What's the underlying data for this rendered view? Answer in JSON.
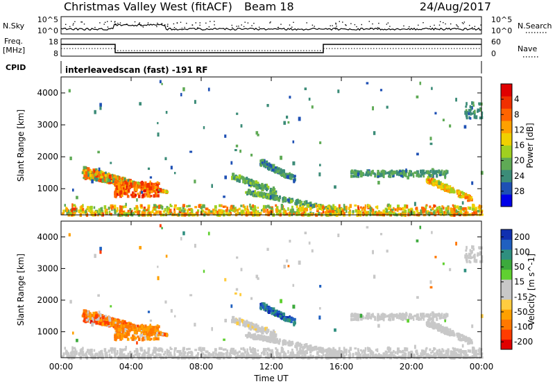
{
  "header": {
    "station": "Christmas Valley West (fitACF)",
    "beam": "Beam 18",
    "date": "24/Aug/2017"
  },
  "top_panels": {
    "nsky_label": "N.Sky",
    "nsky_ticks": [
      "10^5",
      "10^0"
    ],
    "nsearch_label": "N.Search",
    "nsearch_ticks": [
      "10^5",
      "10^0"
    ],
    "freq_label_1": "Freq.",
    "freq_label_2": "[MHz]",
    "freq_ticks": [
      "18",
      "8"
    ],
    "nave_label": "Nave",
    "nave_ticks": [
      "60",
      "0"
    ],
    "cpid_label": "CPID",
    "cpid_text": "interleavedscan (fast) -191 RF"
  },
  "chart_data": [
    {
      "type": "heatmap",
      "title": "",
      "ylabel": "Slant Range [km]",
      "xlabel": "",
      "xlim": [
        0,
        24
      ],
      "ylim": [
        180,
        4500
      ],
      "y_ticks": [
        "1000",
        "2000",
        "3000",
        "4000"
      ],
      "colorbar": {
        "label": "Power [dB]",
        "ticks": [
          "4",
          "8",
          "12",
          "16",
          "20",
          "24",
          "28"
        ],
        "range": [
          0,
          32
        ],
        "colors": [
          "#0000e8",
          "#1e50b4",
          "#3c8c78",
          "#5faa55",
          "#a0d020",
          "#f0d000",
          "#ffa000",
          "#ff6400",
          "#f03000",
          "#e00000"
        ]
      }
    },
    {
      "type": "heatmap",
      "title": "",
      "ylabel": "Slant Range [km]",
      "xlabel": "Time UT",
      "xlim": [
        0,
        24
      ],
      "ylim": [
        180,
        4500
      ],
      "y_ticks": [
        "1000",
        "2000",
        "3000",
        "4000"
      ],
      "x_ticks": [
        "00:00",
        "04:00",
        "08:00",
        "12:00",
        "16:00",
        "20:00",
        "00:00"
      ],
      "colorbar": {
        "label": "Velocity [m s^-1]",
        "ticks": [
          "200",
          "100",
          "50",
          "15",
          "-15",
          "-50",
          "-100",
          "-200"
        ],
        "range": [
          -250,
          250
        ],
        "colors": [
          "#e00000",
          "#ff3c00",
          "#ff7800",
          "#ffa000",
          "#ffcc40",
          "#c8c8c8",
          "#c8c8c8",
          "#60d030",
          "#3caa3c",
          "#2f8f7f",
          "#2060c0",
          "#1030b0"
        ]
      }
    }
  ]
}
